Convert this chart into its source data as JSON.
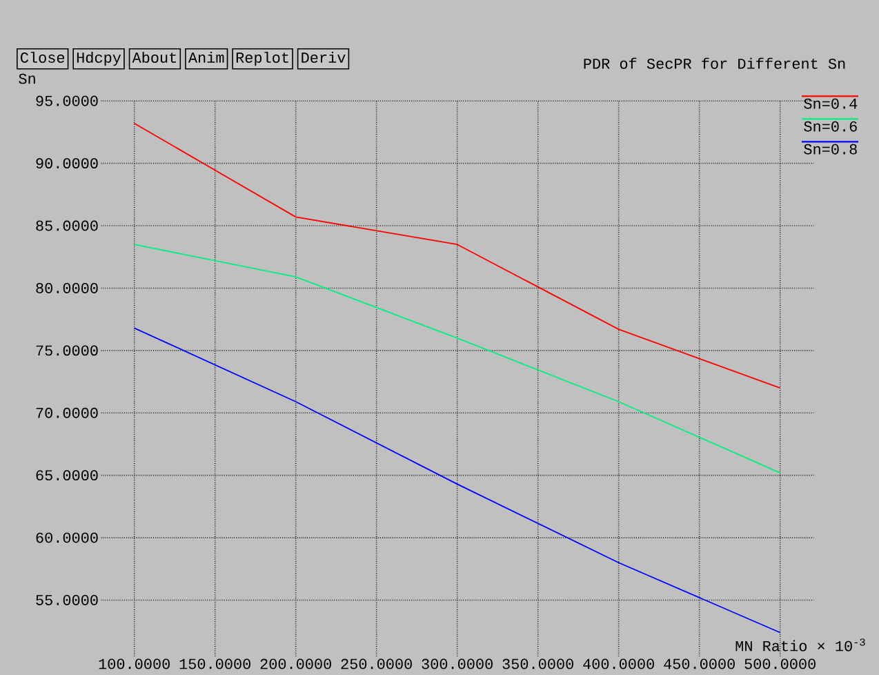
{
  "chart_data": {
    "type": "line",
    "title": "PDR of SecPR for Different Sn",
    "xlabel": "MN Ratio × 10$^{-3}$",
    "ylabel": "Sn",
    "annotations": [
      "Close",
      "Hdcpy",
      "About",
      "Anim",
      "Replot",
      "Deriv"
    ],
    "x": [
      100,
      200,
      300,
      400,
      500
    ],
    "series": [
      {
        "name": "Sn=0.4",
        "color": "#ff0000",
        "values": [
          93.2,
          85.7,
          83.5,
          76.7,
          72.0
        ]
      },
      {
        "name": "Sn=0.6",
        "color": "#00f080",
        "values": [
          83.5,
          80.9,
          76.0,
          70.9,
          65.2
        ]
      },
      {
        "name": "Sn=0.8",
        "color": "#0000ff",
        "values": [
          76.8,
          70.9,
          64.3,
          58.0,
          52.4
        ]
      }
    ],
    "xlim": [
      79.5,
      520.8
    ],
    "ylim": [
      50.5,
      95
    ],
    "xticks": [
      {
        "value": 100,
        "label": "100.0000"
      },
      {
        "value": 150,
        "label": "150.0000"
      },
      {
        "value": 200,
        "label": "200.0000"
      },
      {
        "value": 250,
        "label": "250.0000"
      },
      {
        "value": 300,
        "label": "300.0000"
      },
      {
        "value": 350,
        "label": "350.0000"
      },
      {
        "value": 400,
        "label": "400.0000"
      },
      {
        "value": 450,
        "label": "450.0000"
      },
      {
        "value": 500,
        "label": "500.0000"
      }
    ],
    "yticks": [
      {
        "value": 55,
        "label": "55.0000"
      },
      {
        "value": 60,
        "label": "60.0000"
      },
      {
        "value": 65,
        "label": "65.0000"
      },
      {
        "value": 70,
        "label": "70.0000"
      },
      {
        "value": 75,
        "label": "75.0000"
      },
      {
        "value": 80,
        "label": "80.0000"
      },
      {
        "value": 85,
        "label": "85.0000"
      },
      {
        "value": 90,
        "label": "90.0000"
      },
      {
        "value": 95,
        "label": "95.0000"
      }
    ],
    "grid": true,
    "legend": "top right",
    "marker": "none",
    "line_style": "solid"
  }
}
